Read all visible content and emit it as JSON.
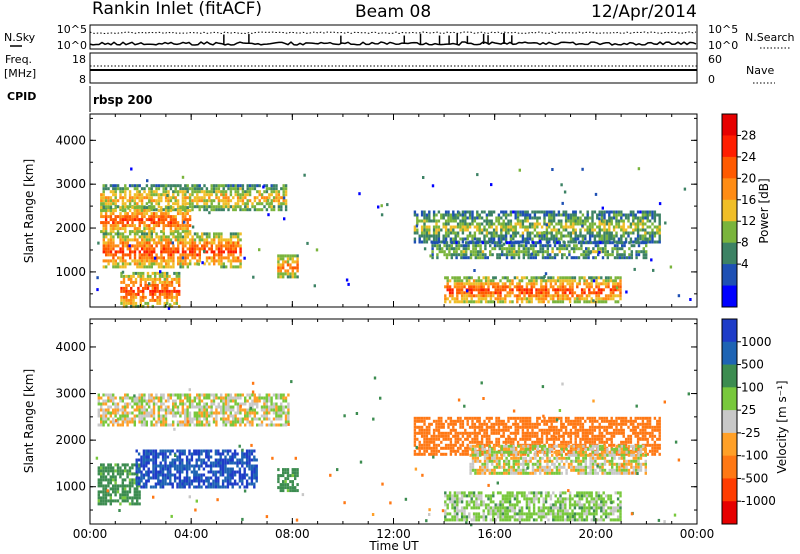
{
  "header": {
    "station": "Rankin Inlet (fitACF)",
    "beam": "Beam 08",
    "date": "12/Apr/2014"
  },
  "noise_panel": {
    "left_label": "N.Sky",
    "right_label": "N.Search",
    "ticks_left": [
      "10^5",
      "10^0"
    ],
    "ticks_right": [
      "10^5",
      "10^0"
    ]
  },
  "freq_panel": {
    "left_label_1": "Freq.",
    "left_label_2": "[MHz]",
    "right_label": "Nave",
    "ticks_left": [
      "18",
      "8"
    ],
    "ticks_right": [
      "60",
      "0"
    ]
  },
  "cpid": {
    "label": "CPID",
    "value": "rbsp 200"
  },
  "chart_data": [
    {
      "type": "heatmap",
      "name": "power",
      "ylabel": "Slant Range [km]",
      "ylim": [
        200,
        4600
      ],
      "yticks": [
        "1000",
        "2000",
        "3000",
        "4000"
      ],
      "colorbar_label": "Power [dB]",
      "colorbar_ticks": [
        "4",
        "8",
        "12",
        "16",
        "20",
        "24",
        "28"
      ],
      "colorbar_colors": [
        "#0000ff",
        "#1e50b4",
        "#3c8264",
        "#7ab43c",
        "#f0be28",
        "#ff8c14",
        "#ff5a00",
        "#ff1e00",
        "#e60000"
      ],
      "echo_regions": [
        {
          "t_start": 0.4,
          "t_end": 7.8,
          "r_start": 2400,
          "r_end": 3000,
          "peak_db": 20
        },
        {
          "t_start": 0.4,
          "t_end": 4.0,
          "r_start": 1900,
          "r_end": 2500,
          "peak_db": 28
        },
        {
          "t_start": 0.5,
          "t_end": 6.0,
          "r_start": 1100,
          "r_end": 1900,
          "peak_db": 28
        },
        {
          "t_start": 1.2,
          "t_end": 3.5,
          "r_start": 200,
          "r_end": 1000,
          "peak_db": 28
        },
        {
          "t_start": 7.4,
          "t_end": 8.2,
          "r_start": 900,
          "r_end": 1400,
          "peak_db": 24
        },
        {
          "t_start": 12.8,
          "t_end": 22.5,
          "r_start": 1700,
          "r_end": 2400,
          "peak_db": 16
        },
        {
          "t_start": 13.5,
          "t_end": 22.0,
          "r_start": 1300,
          "r_end": 1700,
          "peak_db": 14
        },
        {
          "t_start": 14.0,
          "t_end": 21.0,
          "r_start": 300,
          "r_end": 900,
          "peak_db": 28
        }
      ]
    },
    {
      "type": "heatmap",
      "name": "velocity",
      "ylabel": "Slant Range [km]",
      "ylim": [
        200,
        4600
      ],
      "yticks": [
        "1000",
        "2000",
        "3000",
        "4000"
      ],
      "colorbar_label": "Velocity [m s⁻¹]",
      "colorbar_ticks": [
        "1000",
        "500",
        "100",
        "25",
        "-25",
        "-100",
        "-500",
        "-1000"
      ],
      "colorbar_colors": [
        "#1e3cc8",
        "#1e64b4",
        "#3c8c50",
        "#78c83c",
        "#c8c8c8",
        "#ffa028",
        "#ff7814",
        "#ff3c00",
        "#e60000"
      ],
      "echo_regions": [
        {
          "t_start": 0.3,
          "t_end": 7.8,
          "r_start": 2300,
          "r_end": 3000,
          "velocity": 0
        },
        {
          "t_start": 0.3,
          "t_end": 2.0,
          "r_start": 600,
          "r_end": 1500,
          "velocity": 150
        },
        {
          "t_start": 1.8,
          "t_end": 6.6,
          "r_start": 1000,
          "r_end": 1800,
          "velocity": 1000
        },
        {
          "t_start": 7.4,
          "t_end": 8.2,
          "r_start": 900,
          "r_end": 1400,
          "velocity": 150
        },
        {
          "t_start": 12.8,
          "t_end": 22.5,
          "r_start": 1700,
          "r_end": 2500,
          "velocity": -300
        },
        {
          "t_start": 15.0,
          "t_end": 22.0,
          "r_start": 1300,
          "r_end": 1900,
          "velocity": 0
        },
        {
          "t_start": 14.0,
          "t_end": 21.0,
          "r_start": 300,
          "r_end": 900,
          "velocity": 50
        }
      ]
    }
  ],
  "x_axis": {
    "xlim": [
      0,
      24
    ],
    "ticks": [
      "00:00",
      "04:00",
      "08:00",
      "12:00",
      "16:00",
      "20:00",
      "00:00"
    ],
    "label": "Time UT"
  }
}
